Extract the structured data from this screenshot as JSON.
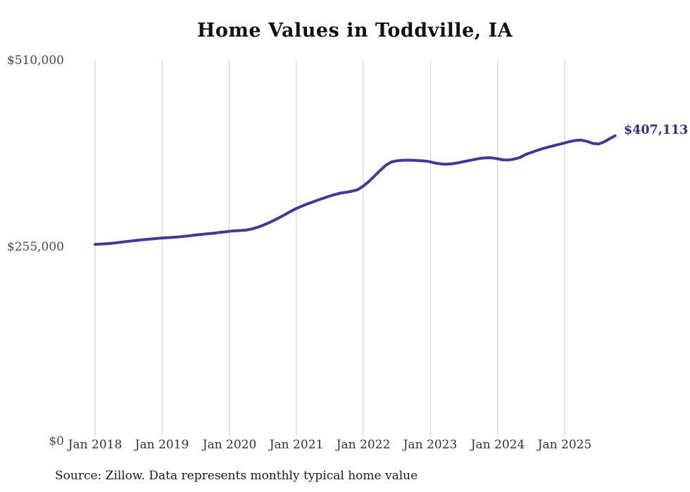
{
  "title": "Home Values in Toddville, IA",
  "end_label": "$407,113",
  "source_note": "Source: Zillow. Data represents monthly typical home value",
  "colors": {
    "line": "#3b3b9e",
    "end_label": "#2c2c8e",
    "gridline": "#cccccc",
    "x_tick_label": "#333333",
    "y_tick_label": "#4a4a4a",
    "title": "#111111",
    "source": "#1a1a1a",
    "background": "#ffffff"
  },
  "chart_data": {
    "type": "line",
    "title": "Home Values in Toddville, IA",
    "xlabel": "",
    "ylabel": "",
    "ylim": [
      0,
      510000
    ],
    "grid": "vertical",
    "legend": "none",
    "y_ticks": [
      {
        "value": 510000,
        "label": "$510,000"
      },
      {
        "value": 255000,
        "label": "$255,000"
      },
      {
        "value": 0,
        "label": "$0"
      }
    ],
    "x_tick_labels": [
      "Jan 2018",
      "Jan 2019",
      "Jan 2020",
      "Jan 2021",
      "Jan 2022",
      "Jan 2023",
      "Jan 2024",
      "Jan 2025"
    ],
    "series": [
      {
        "name": "Typical home value",
        "final_value": 407113,
        "final_value_label": "$407,113",
        "months": [
          "2018-01",
          "2018-02",
          "2018-03",
          "2018-04",
          "2018-05",
          "2018-06",
          "2018-07",
          "2018-08",
          "2018-09",
          "2018-10",
          "2018-11",
          "2018-12",
          "2019-01",
          "2019-02",
          "2019-03",
          "2019-04",
          "2019-05",
          "2019-06",
          "2019-07",
          "2019-08",
          "2019-09",
          "2019-10",
          "2019-11",
          "2019-12",
          "2020-01",
          "2020-02",
          "2020-03",
          "2020-04",
          "2020-05",
          "2020-06",
          "2020-07",
          "2020-08",
          "2020-09",
          "2020-10",
          "2020-11",
          "2020-12",
          "2021-01",
          "2021-02",
          "2021-03",
          "2021-04",
          "2021-05",
          "2021-06",
          "2021-07",
          "2021-08",
          "2021-09",
          "2021-10",
          "2021-11",
          "2021-12",
          "2022-01",
          "2022-02",
          "2022-03",
          "2022-04",
          "2022-05",
          "2022-06",
          "2022-07",
          "2022-08",
          "2022-09",
          "2022-10",
          "2022-11",
          "2022-12",
          "2023-01",
          "2023-02",
          "2023-03",
          "2023-04",
          "2023-05",
          "2023-06",
          "2023-07",
          "2023-08",
          "2023-09",
          "2023-10",
          "2023-11",
          "2023-12",
          "2024-01",
          "2024-02",
          "2024-03",
          "2024-04",
          "2024-05",
          "2024-06",
          "2024-07",
          "2024-08",
          "2024-09",
          "2024-10",
          "2024-11",
          "2024-12",
          "2025-01",
          "2025-02",
          "2025-03",
          "2025-04",
          "2025-05",
          "2025-06",
          "2025-07",
          "2025-08",
          "2025-09",
          "2025-10"
        ],
        "values": [
          258800,
          259100,
          259500,
          260200,
          261100,
          262000,
          262900,
          263800,
          264600,
          265400,
          266100,
          266800,
          267400,
          267900,
          268400,
          269000,
          269700,
          270600,
          271500,
          272300,
          273000,
          273800,
          274700,
          275600,
          276600,
          277200,
          277600,
          278200,
          279600,
          281800,
          284600,
          287900,
          291500,
          295400,
          299600,
          303800,
          307700,
          311000,
          314100,
          316900,
          319600,
          322300,
          324800,
          327000,
          329000,
          330000,
          331500,
          333500,
          338500,
          344800,
          352200,
          359800,
          366800,
          371300,
          373000,
          373600,
          373800,
          373600,
          373200,
          372600,
          371500,
          369600,
          368500,
          368300,
          369000,
          370300,
          371900,
          373500,
          375000,
          376300,
          377100,
          376900,
          375700,
          374200,
          374100,
          375300,
          377500,
          381500,
          384300,
          386900,
          389400,
          391500,
          393500,
          395400,
          397300,
          399300,
          400900,
          401200,
          399400,
          396800,
          395900,
          398600,
          402900,
          407113
        ]
      }
    ]
  }
}
